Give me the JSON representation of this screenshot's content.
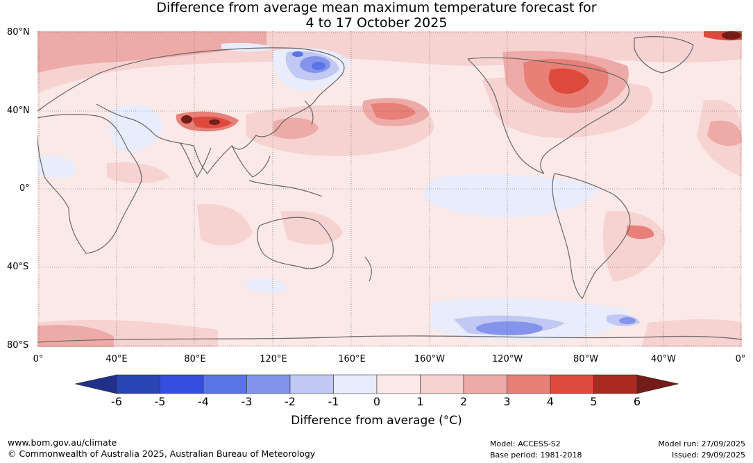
{
  "title": {
    "line1": "Difference from average mean maximum temperature forecast for",
    "line2": "4 to 17 October 2025"
  },
  "latitude_labels": [
    "80°N",
    "40°N",
    "0°",
    "40°S",
    "80°S"
  ],
  "longitude_labels": [
    "0°",
    "40°E",
    "80°E",
    "120°E",
    "160°E",
    "160°W",
    "120°W",
    "80°W",
    "40°W",
    "0°"
  ],
  "colorbar": {
    "ticks": [
      "-6",
      "-5",
      "-4",
      "-3",
      "-2",
      "-1",
      "0",
      "1",
      "2",
      "3",
      "4",
      "5",
      "6"
    ],
    "colors": [
      "#1f2f8a",
      "#2a44b5",
      "#344fe0",
      "#5a73e6",
      "#8494ec",
      "#c0c8f3",
      "#e8ecfb",
      "#fbe9e8",
      "#f6d2d1",
      "#eeaaa7",
      "#e88078",
      "#dd4a3c",
      "#aa2a22",
      "#741c18"
    ],
    "title": "Difference from average (°C)"
  },
  "footer": {
    "website": "www.bom.gov.au/climate",
    "copyright": "© Commonwealth of Australia 2025, Australian Bureau of Meteorology",
    "model": "Model: ACCESS-S2",
    "base_period": "Base period: 1981-2018",
    "model_run": "Model run: 27/09/2025",
    "issued": "Issued: 29/09/2025"
  }
}
